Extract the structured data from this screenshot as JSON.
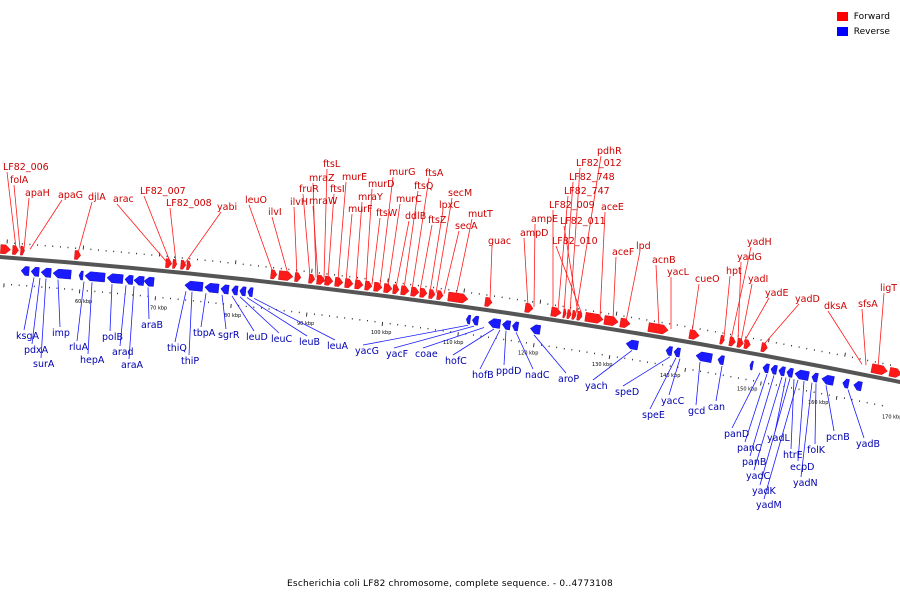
{
  "legend": {
    "forward_label": "Forward",
    "reverse_label": "Reverse",
    "forward_color": "#ff0000",
    "reverse_color": "#0000ff"
  },
  "caption": "Escherichia coli LF82 chromosome, complete sequence. - 0..4773108",
  "colors": {
    "forward_fill": "#ff1a1a",
    "reverse_fill": "#1a1aff",
    "forward_label": "#cc0000",
    "reverse_label": "#0000b0",
    "backbone": "#555555"
  },
  "scale_labels": [
    "60 kbp",
    "70 kbp",
    "80 kbp",
    "90 kbp",
    "100 kbp",
    "110 kbp",
    "120 kbp",
    "130 kbp",
    "140 kbp",
    "150 kbp",
    "160 kbp",
    "170 kbp"
  ],
  "forward_genes": [
    "LF82_006",
    "folA",
    "apaH",
    "apaG",
    "djlA",
    "arac",
    "LF82_007",
    "LF82_008",
    "yabi",
    "leuO",
    "ilvI",
    "ilvH",
    "fruR",
    "mraZ",
    "ftsL",
    "mraW",
    "ftsI",
    "murE",
    "murF",
    "mraY",
    "murD",
    "ftsW",
    "murG",
    "murC",
    "ddlB",
    "ftsQ",
    "ftsA",
    "ftsZ",
    "lpxC",
    "secM",
    "secA",
    "mutT",
    "guac",
    "ampD",
    "ampE",
    "LF82_009",
    "LF82_747",
    "LF82_748",
    "LF82_012",
    "pdhR",
    "LF82_011",
    "LF82_010",
    "aceE",
    "aceF",
    "lpd",
    "acnB",
    "yacL",
    "cueO",
    "hpt",
    "yadH",
    "yadG",
    "yadI",
    "yadE",
    "yadD",
    "dksA",
    "sfsA",
    "ligT"
  ],
  "reverse_genes": [
    "ksgA",
    "pdxA",
    "surA",
    "imp",
    "rluA",
    "hepA",
    "polB",
    "arad",
    "araA",
    "araB",
    "thiQ",
    "thiP",
    "tbpA",
    "sgrR",
    "leuD",
    "leuC",
    "leuB",
    "leuA",
    "yacG",
    "yacF",
    "coae",
    "hofC",
    "hofB",
    "ppdD",
    "nadC",
    "aroP",
    "yach",
    "speD",
    "speE",
    "yacC",
    "gcd",
    "can",
    "panD",
    "panC",
    "panB",
    "yadC",
    "yadK",
    "yadM",
    "yadL",
    "htrE",
    "ecpD",
    "yadN",
    "folK",
    "pcnB",
    "yadB"
  ]
}
